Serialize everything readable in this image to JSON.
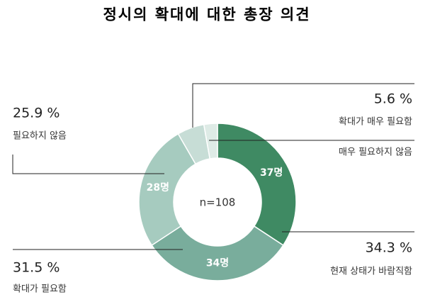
{
  "chart_data": {
    "type": "donut",
    "title": "정시의 확대에 대한 총장 의견",
    "center_label": "n=108",
    "categories": [
      "현재 상태가 바람직함",
      "확대가 필요함",
      "필요하지 않음",
      "확대가 매우 필요함",
      "매우 필요하지 않음"
    ],
    "values": [
      37,
      34,
      28,
      6,
      3
    ],
    "value_labels": [
      "37명",
      "34명",
      "28명",
      null,
      null
    ],
    "percent_labels": [
      "34.3 %",
      "31.5 %",
      "25.9 %",
      "5.6 %",
      null
    ],
    "colors": [
      "#3f8a63",
      "#79ad9c",
      "#a6cbbf",
      "#c7ddd6",
      "#deebe6"
    ]
  }
}
